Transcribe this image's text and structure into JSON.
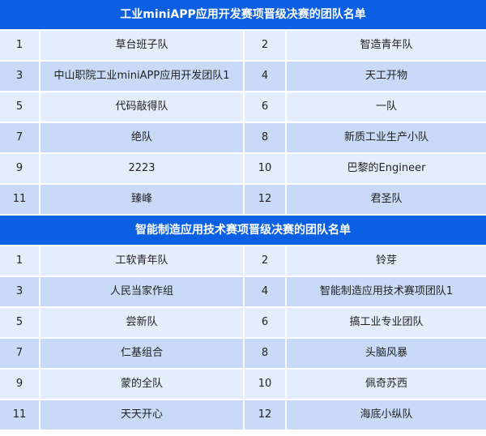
{
  "colors": {
    "header": "#0b5fe3",
    "row_light": "#e4edfc",
    "row_dark": "#c8daf7"
  },
  "sections": [
    {
      "title": "工业miniAPP应用开发赛项晋级决赛的团队名单",
      "rows": [
        [
          "1",
          "草台班子队",
          "2",
          "智造青年队"
        ],
        [
          "3",
          "中山职院工业miniAPP应用开发团队1",
          "4",
          "天工开物"
        ],
        [
          "5",
          "代码敲得队",
          "6",
          "一队"
        ],
        [
          "7",
          "绝队",
          "8",
          "新质工业生产小队"
        ],
        [
          "9",
          "2223",
          "10",
          "巴黎的Engineer"
        ],
        [
          "11",
          "臻峰",
          "12",
          "君圣队"
        ]
      ]
    },
    {
      "title": "智能制造应用技术赛项晋级决赛的团队名单",
      "rows": [
        [
          "1",
          "工软青年队",
          "2",
          "铃芽"
        ],
        [
          "3",
          "人民当家作组",
          "4",
          "智能制造应用技术赛项团队1"
        ],
        [
          "5",
          "尝新队",
          "6",
          "搞工业专业团队"
        ],
        [
          "7",
          "仁基组合",
          "8",
          "头脑风暴"
        ],
        [
          "9",
          "蒙的全队",
          "10",
          "佩奇苏西"
        ],
        [
          "11",
          "天天开心",
          "12",
          "海底小纵队"
        ]
      ]
    }
  ]
}
